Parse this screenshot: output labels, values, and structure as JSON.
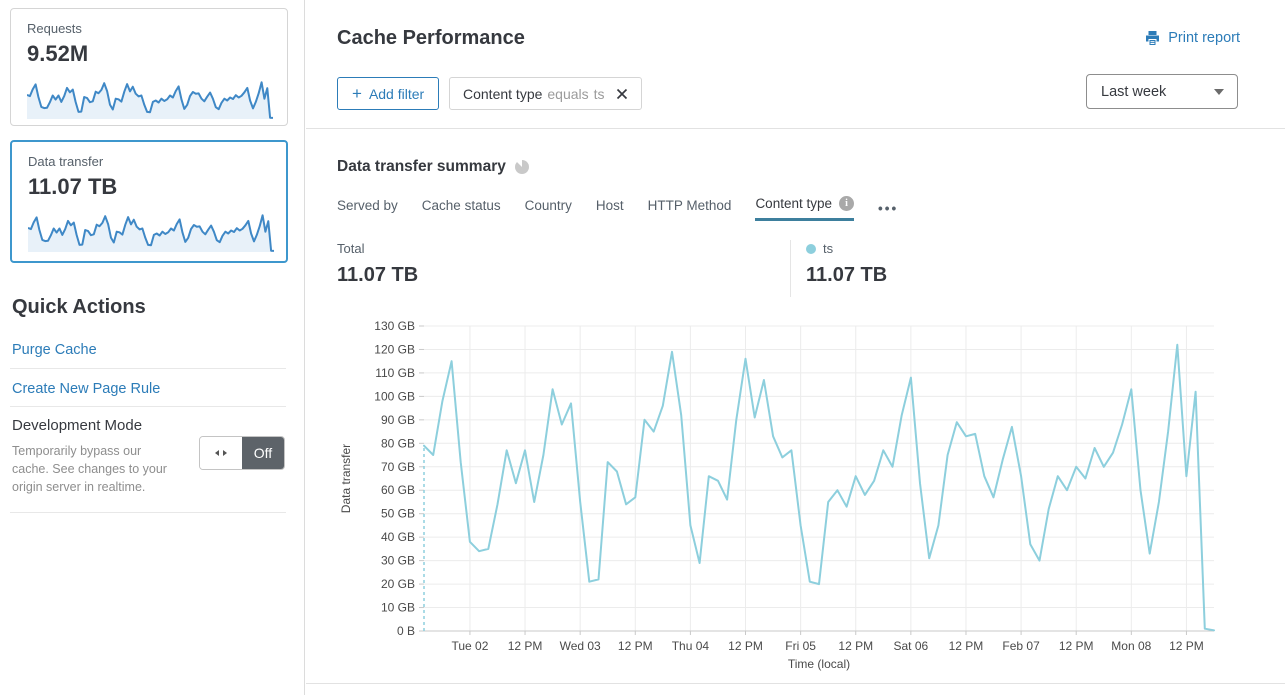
{
  "colors": {
    "link_blue": "#2c7cb8",
    "series_blue": "#8dcfdd",
    "spark_stroke": "#3f88c6",
    "spark_fill": "#e8f1f9",
    "selected_card_border": "#3d97cd",
    "tab_underline": "#3d7f9d"
  },
  "sidebar": {
    "cards": [
      {
        "label": "Requests",
        "value": "9.52M",
        "selected": false
      },
      {
        "label": "Data transfer",
        "value": "11.07 TB",
        "selected": true
      }
    ],
    "quick_actions": {
      "title": "Quick Actions",
      "links": [
        {
          "label": "Purge Cache"
        },
        {
          "label": "Create New Page Rule"
        }
      ],
      "dev_mode": {
        "title": "Development Mode",
        "description": "Temporarily bypass our cache. See changes to your origin server in realtime.",
        "toggle_state": "Off"
      }
    }
  },
  "header": {
    "title": "Cache Performance",
    "print_label": "Print report"
  },
  "filters": {
    "add_label": "Add filter",
    "chips": [
      {
        "field": "Content type",
        "operator": "equals",
        "value": "ts"
      }
    ],
    "range_label": "Last week"
  },
  "summary": {
    "title": "Data transfer summary",
    "tabs": [
      {
        "label": "Served by",
        "active": false
      },
      {
        "label": "Cache status",
        "active": false
      },
      {
        "label": "Country",
        "active": false
      },
      {
        "label": "Host",
        "active": false
      },
      {
        "label": "HTTP Method",
        "active": false
      },
      {
        "label": "Content type",
        "active": true,
        "info_icon": true
      }
    ],
    "more_label": "•••",
    "total_label": "Total",
    "total_value": "11.07 TB",
    "legend": [
      {
        "label": "ts",
        "value": "11.07 TB",
        "color": "#8dcfdd"
      }
    ]
  },
  "chart_data": {
    "type": "line",
    "title": "Data transfer summary",
    "xlabel": "Time (local)",
    "ylabel": "Data transfer",
    "ylim": [
      0,
      130
    ],
    "y_unit": "GB",
    "grid": true,
    "legend_position": "top-right",
    "y_ticks": [
      "0 B",
      "10 GB",
      "20 GB",
      "30 GB",
      "40 GB",
      "50 GB",
      "60 GB",
      "70 GB",
      "80 GB",
      "90 GB",
      "100 GB",
      "110 GB",
      "120 GB",
      "130 GB"
    ],
    "x_ticks": [
      "Tue 02",
      "12 PM",
      "Wed 03",
      "12 PM",
      "Thu 04",
      "12 PM",
      "Fri 05",
      "12 PM",
      "Sat 06",
      "12 PM",
      "Feb 07",
      "12 PM",
      "Mon 08",
      "12 PM"
    ],
    "x_tick_start_offset_h": 10,
    "x_tick_step_h": 12,
    "x_step_hours": 2,
    "x_start_label": "Mon 01 2 PM",
    "leading_dashed_drop": true,
    "series": [
      {
        "name": "ts",
        "color": "#8dcfdd",
        "values_unit": "GB",
        "values": [
          79,
          75,
          98,
          115,
          72,
          38,
          34,
          35,
          54,
          77,
          63,
          77,
          55,
          75,
          103,
          88,
          97,
          55,
          21,
          22,
          72,
          68,
          54,
          57,
          90,
          85,
          96,
          119,
          92,
          45,
          29,
          66,
          64,
          56,
          90,
          116,
          91,
          107,
          83,
          74,
          77,
          45,
          21,
          20,
          55,
          60,
          53,
          66,
          58,
          64,
          77,
          70,
          92,
          108,
          63,
          31,
          45,
          75,
          89,
          83,
          84,
          66,
          57,
          73,
          87,
          66,
          37,
          30,
          52,
          66,
          60,
          70,
          65,
          78,
          70,
          76,
          88,
          103,
          60,
          33,
          55,
          85,
          122,
          66,
          102,
          1,
          0.3
        ]
      }
    ]
  }
}
